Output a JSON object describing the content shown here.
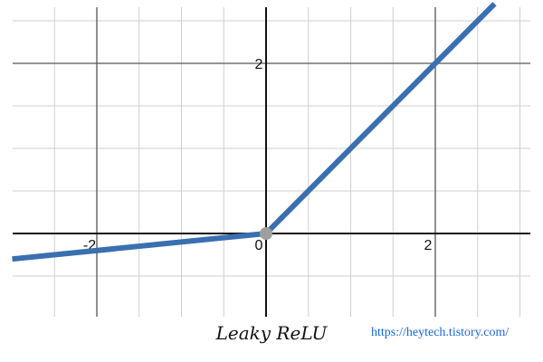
{
  "chart_data": {
    "type": "line",
    "xlim": [
      -3,
      3.1
    ],
    "ylim": [
      -1,
      2.8
    ],
    "grid": true,
    "x_tick_labels": [
      {
        "value": -2,
        "label": "-2"
      },
      {
        "value": 0,
        "label": "0"
      },
      {
        "value": 2,
        "label": "2"
      }
    ],
    "y_tick_labels": [
      {
        "value": 2,
        "label": "2"
      }
    ],
    "series": [
      {
        "color": "#3a6fb0",
        "points": [
          [
            -3,
            -0.3
          ],
          [
            0,
            0
          ],
          [
            2.7,
            2.7
          ]
        ]
      }
    ],
    "highlight_point": {
      "x": 0,
      "y": 0,
      "color": "#9e9e9e"
    }
  },
  "caption": "Leaky ReLU",
  "source_link": "https://heytech.tistory.com/"
}
